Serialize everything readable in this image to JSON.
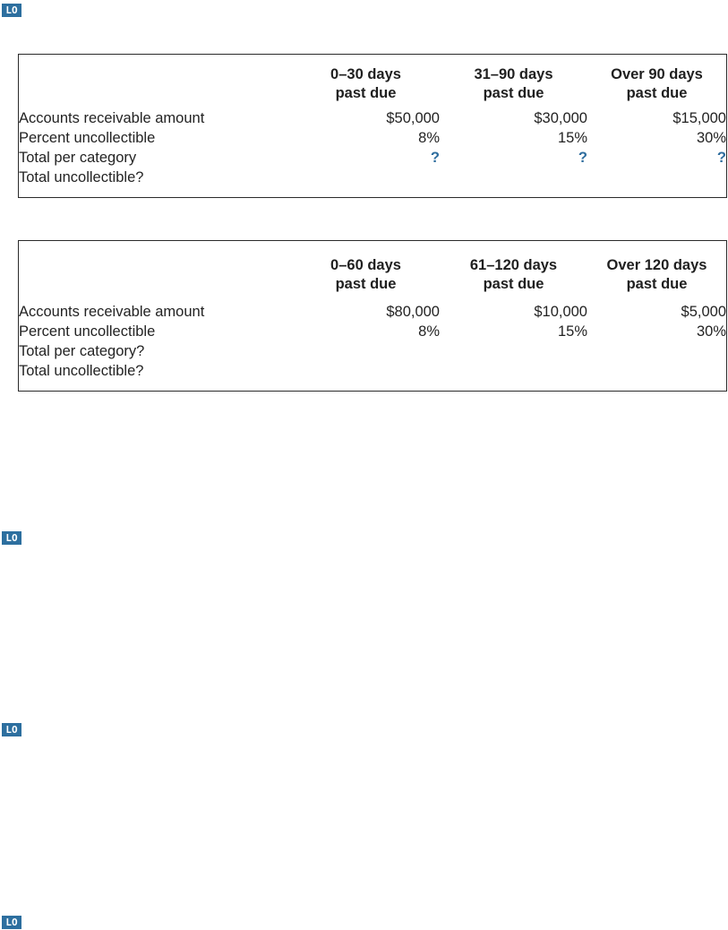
{
  "page": {
    "background": "#ffffff",
    "text_color": "#232323",
    "table_border_color": "#2b2b2b",
    "question_mark_color": "#2e6d9e"
  },
  "lo_badges": [
    {
      "label": "LO",
      "color": "#2d6f9f"
    },
    {
      "label": "LO",
      "color": "#2d6f9f"
    },
    {
      "label": "LO",
      "color": "#2d6f9f"
    },
    {
      "label": "LO",
      "color": "#2d6f9f"
    }
  ],
  "tables": [
    {
      "columns": [
        {
          "line1": "0–30 days",
          "line2": "past due"
        },
        {
          "line1": "31–90 days",
          "line2": "past due"
        },
        {
          "line1": "Over 90 days",
          "line2": "past due"
        }
      ],
      "rows": [
        {
          "label": "Accounts receivable amount",
          "v1": "$50,000",
          "v2": "$30,000",
          "v3": "$15,000"
        },
        {
          "label": "Percent uncollectible",
          "v1": "8%",
          "v2": "15%",
          "v3": "30%"
        },
        {
          "label": "Total per category",
          "v1": "?",
          "v2": "?",
          "v3": "?"
        },
        {
          "label": "Total uncollectible?",
          "v1": "",
          "v2": "",
          "v3": ""
        }
      ]
    },
    {
      "columns": [
        {
          "line1": "0–60 days",
          "line2": "past due"
        },
        {
          "line1": "61–120 days",
          "line2": "past due"
        },
        {
          "line1": "Over 120 days",
          "line2": "past due"
        }
      ],
      "rows": [
        {
          "label": "Accounts receivable amount",
          "v1": "$80,000",
          "v2": "$10,000",
          "v3": "$5,000"
        },
        {
          "label": "Percent uncollectible",
          "v1": "8%",
          "v2": "15%",
          "v3": "30%"
        },
        {
          "label": "Total per category?",
          "v1": "",
          "v2": "",
          "v3": ""
        },
        {
          "label": "Total uncollectible?",
          "v1": "",
          "v2": "",
          "v3": ""
        }
      ]
    }
  ]
}
